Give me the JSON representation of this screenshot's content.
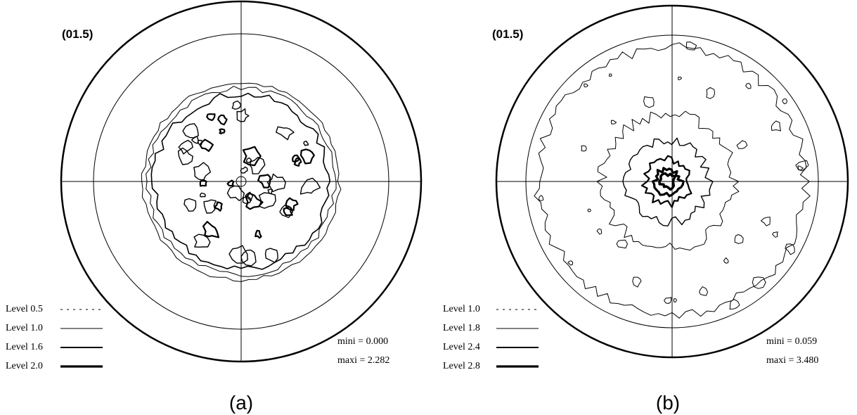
{
  "panels": [
    {
      "label": "(01.5)",
      "legend": [
        "Level 0.5",
        "Level 1.0",
        "Level 1.6",
        "Level 2.0"
      ],
      "mini": "mini = 0.000",
      "maxi": "maxi = 2.282",
      "caption": "(a)"
    },
    {
      "label": "(01.5)",
      "legend": [
        "Level 1.0",
        "Level 1.8",
        "Level 2.4",
        "Level 2.8"
      ],
      "mini": "mini = 0.059",
      "maxi": "maxi = 3.480",
      "caption": "(b)"
    }
  ]
}
